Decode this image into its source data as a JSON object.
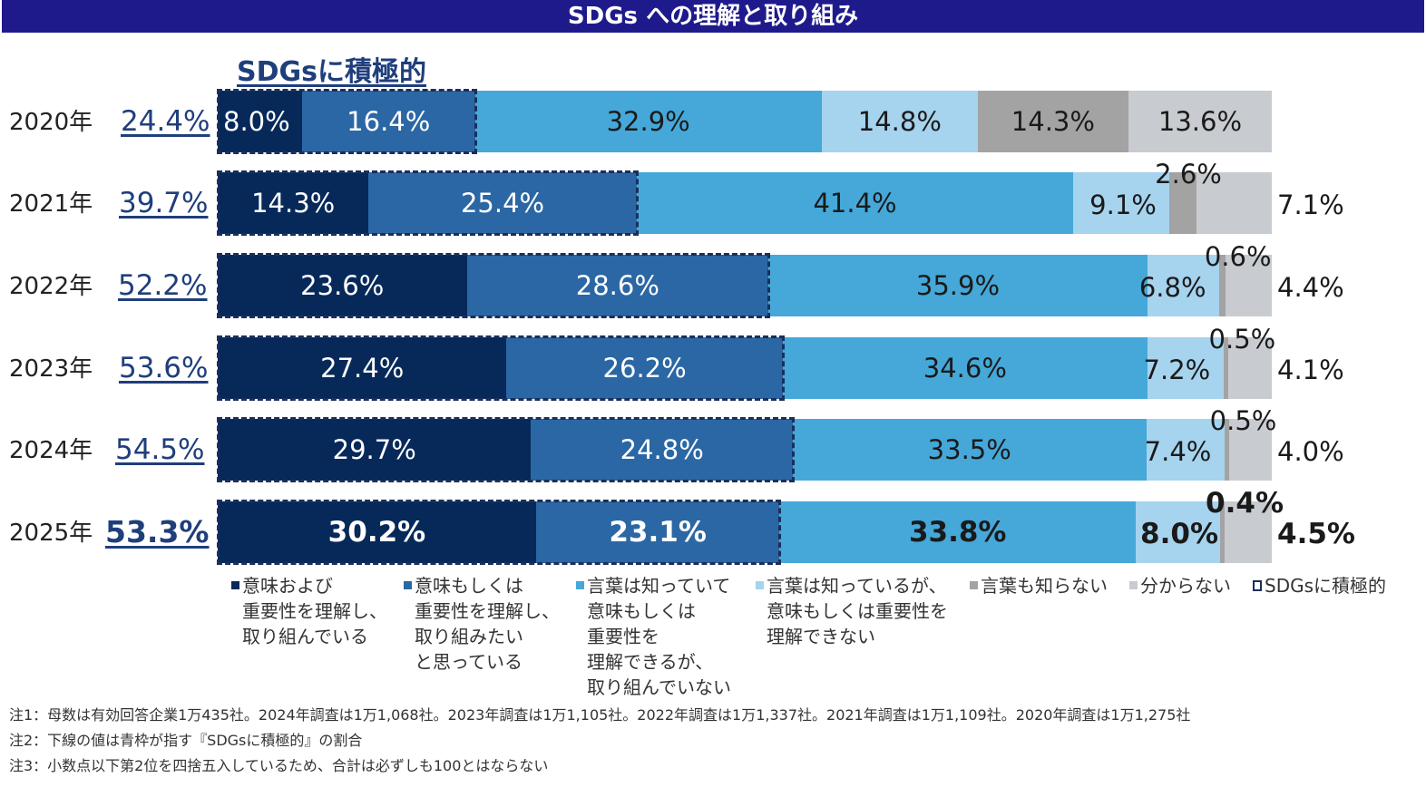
{
  "header": {
    "title": "SDGs への理解と取り組み"
  },
  "colors": {
    "dark_navy": "#07295a",
    "medium_blue": "#2b67a4",
    "light_blue": "#45a8d9",
    "pale_blue": "#a6d3ee",
    "gray": "#a3a3a3",
    "light_gray": "#c8ccd1",
    "accent": "#1f3e7c"
  },
  "chart_data": {
    "type": "bar",
    "orientation": "horizontal",
    "stacked": true,
    "title": "SDGs への理解と取り組み",
    "subtitle": "SDGsに積極的",
    "xlim": [
      0,
      100
    ],
    "categories": [
      "2020年",
      "2021年",
      "2022年",
      "2023年",
      "2024年",
      "2025年"
    ],
    "positive_totals": [
      "24.4%",
      "39.7%",
      "52.2%",
      "53.6%",
      "54.5%",
      "53.3%"
    ],
    "series": [
      {
        "name": "意味および\n重要性を理解し、\n取り組んでいる",
        "color": "#07295a",
        "text_color": "#ffffff",
        "values": [
          8.0,
          14.3,
          23.6,
          27.4,
          29.7,
          30.2
        ],
        "labels": [
          "8.0%",
          "14.3%",
          "23.6%",
          "27.4%",
          "29.7%",
          "30.2%"
        ]
      },
      {
        "name": "意味もしくは\n重要性を理解し、\n取り組みたい\nと思っている",
        "color": "#2b67a4",
        "text_color": "#ffffff",
        "values": [
          16.4,
          25.4,
          28.6,
          26.2,
          24.8,
          23.1
        ],
        "labels": [
          "16.4%",
          "25.4%",
          "28.6%",
          "26.2%",
          "24.8%",
          "23.1%"
        ]
      },
      {
        "name": "言葉は知っていて\n意味もしくは\n重要性を\n理解できるが、\n取り組んでいない",
        "color": "#45a8d9",
        "text_color": "#1a1a1a",
        "values": [
          32.9,
          41.4,
          35.9,
          34.6,
          33.5,
          33.8
        ],
        "labels": [
          "32.9%",
          "41.4%",
          "35.9%",
          "34.6%",
          "33.5%",
          "33.8%"
        ]
      },
      {
        "name": "言葉は知っているが、\n意味もしくは重要性を\n理解できない",
        "color": "#a6d3ee",
        "text_color": "#1a1a1a",
        "values": [
          14.8,
          9.1,
          6.8,
          7.2,
          7.4,
          8.0
        ],
        "labels": [
          "14.8%",
          "9.1%",
          "6.8%",
          "7.2%",
          "7.4%",
          "8.0%"
        ]
      },
      {
        "name": "言葉も知らない",
        "color": "#a3a3a3",
        "text_color": "#1a1a1a",
        "values": [
          14.3,
          2.6,
          0.6,
          0.5,
          0.5,
          0.4
        ],
        "labels": [
          "14.3%",
          "2.6%",
          "0.6%",
          "0.5%",
          "0.5%",
          "0.4%"
        ]
      },
      {
        "name": "分からない",
        "color": "#c8ccd1",
        "text_color": "#1a1a1a",
        "values": [
          13.6,
          7.1,
          4.4,
          4.1,
          4.0,
          4.5
        ],
        "labels": [
          "13.6%",
          "7.1%",
          "4.4%",
          "4.1%",
          "4.0%",
          "4.5%"
        ]
      }
    ],
    "legend": {
      "position": "bottom",
      "extra_item": "SDGsに積極的"
    }
  },
  "notes": [
    "注1：母数は有効回答企業1万435社。2024年調査は1万1,068社。2023年調査は1万1,105社。2022年調査は1万1,337社。2021年調査は1万1,109社。2020年調査は1万1,275社",
    "注2：下線の値は青枠が指す『SDGsに積極的』の割合",
    "注3：小数点以下第2位を四捨五入しているため、合計は必ずしも100とはならない"
  ]
}
